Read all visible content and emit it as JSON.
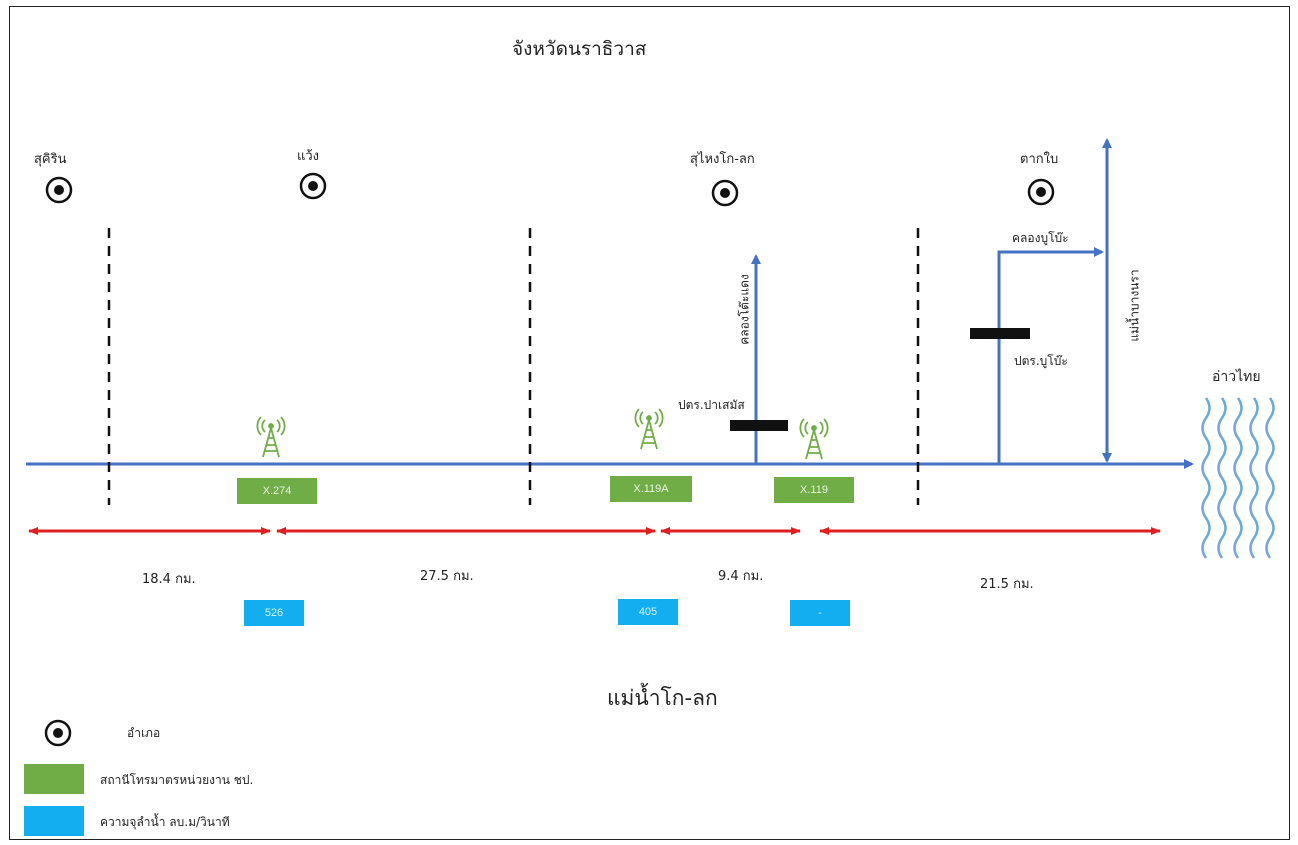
{
  "title": "จังหวัดนราธิวาส",
  "river_name": "แม่น้ำโก-ลก",
  "sea_label": "อ่าวไทย",
  "colors": {
    "river": "#4472c4",
    "distance_arrow": "#e02020",
    "station_box": "#70ad47",
    "flow_box": "#12aeef",
    "tower": "#70ad47",
    "gate": "#111111"
  },
  "districts": [
    {
      "name": "สุคิริน",
      "icon": "district-icon"
    },
    {
      "name": "แว้ง",
      "icon": "district-icon"
    },
    {
      "name": "สุไหงโก-ลก",
      "icon": "district-icon"
    },
    {
      "name": "ตากใบ",
      "icon": "district-icon"
    }
  ],
  "stations": [
    {
      "code": "X.274",
      "icon": "radio-tower-icon"
    },
    {
      "code": "X.119A",
      "icon": "radio-tower-icon"
    },
    {
      "code": "X.119",
      "icon": "radio-tower-icon"
    }
  ],
  "distances": [
    "18.4 กม.",
    "27.5 กม.",
    "9.4 กม.",
    "21.5 กม."
  ],
  "flows": [
    "526",
    "405",
    "-"
  ],
  "tributaries": {
    "khlong_to_daeng": "คลองโต๊ะแดง",
    "khlong_bumo": "คลองบูโบ๊ะ",
    "mae_nam_bang_nara": "แม่น้ำบางนรา"
  },
  "gates": {
    "pa_se_mat": "ปตร.ปาเสมัส",
    "bumo": "ปตร.บูโบ๊ะ"
  },
  "legend": {
    "district": "อำเภอ",
    "station": "สถานีโทรมาตรหน่วยงาน ชป.",
    "flow": "ความจุลำน้ำ ลบ.ม/วินาที"
  }
}
